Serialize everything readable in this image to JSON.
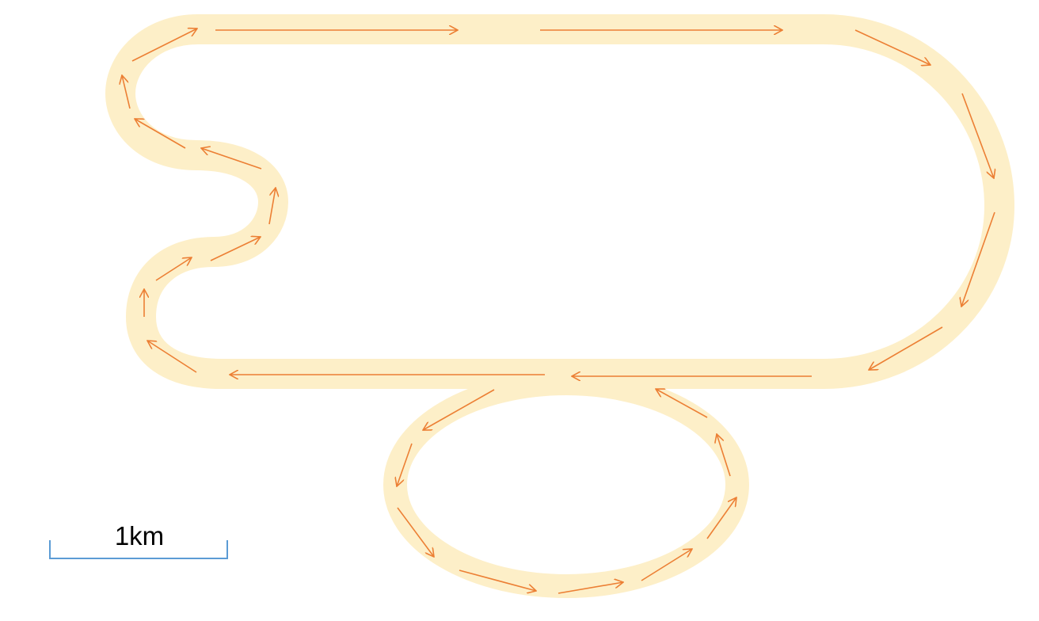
{
  "map": {
    "track_color": "#fdefc8",
    "arrow_color": "#ec7f34",
    "background_color": "#ffffff"
  },
  "scale": {
    "label": "1km",
    "line_color": "#5b9bd5"
  },
  "icons": {
    "direction": "arrow-icon"
  }
}
